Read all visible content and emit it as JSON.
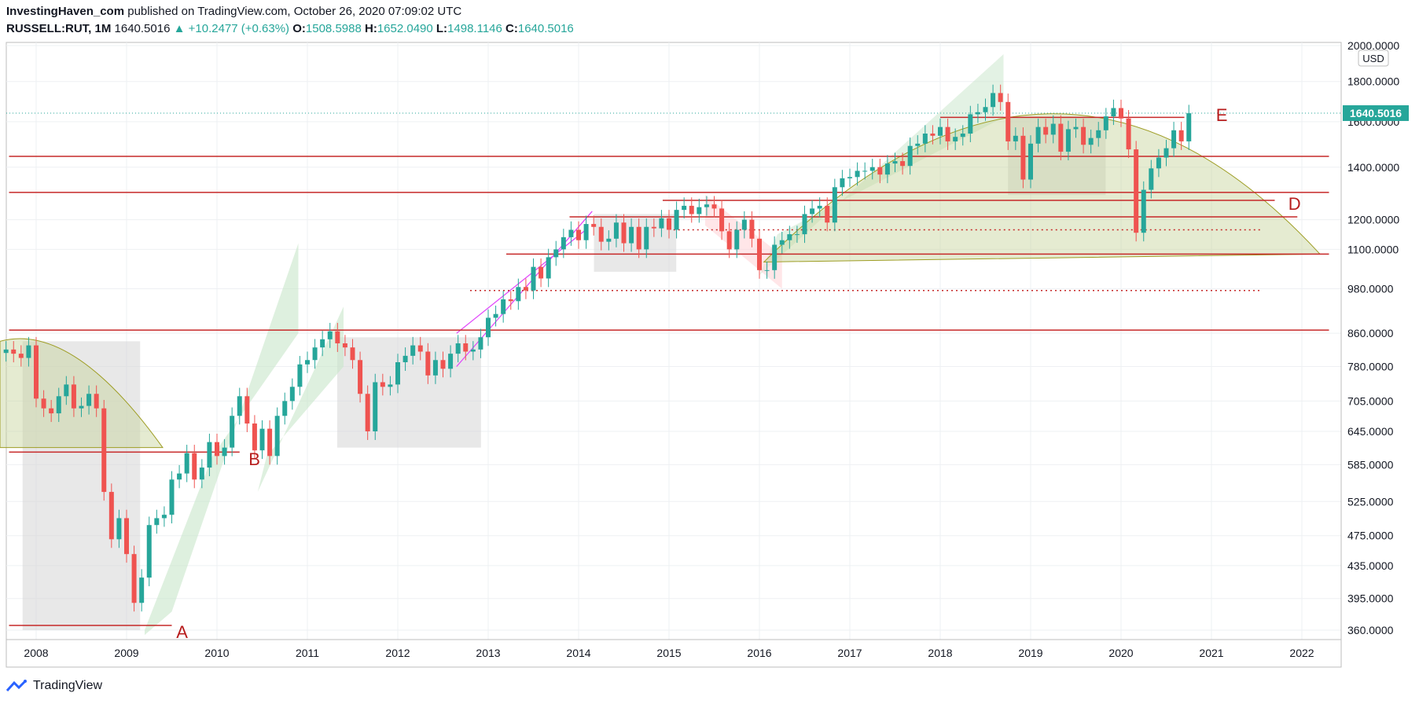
{
  "header": {
    "publisher": "InvestingHaven_com",
    "published_text": "published on TradingView.com, October 26, 2020 07:09:02 UTC",
    "symbol": "RUSSELL:RUT, 1M",
    "last": "1640.5016",
    "change_arrow": "▲",
    "change": "+10.2477 (+0.63%)",
    "open_label": "O:",
    "open": "1508.5988",
    "high_label": "H:",
    "high": "1652.0490",
    "low_label": "L:",
    "low": "1498.1146",
    "close_label": "C:",
    "close": "1640.5016"
  },
  "footer": {
    "brand": "TradingView"
  },
  "colors": {
    "up": "#26a69a",
    "down": "#ef5350",
    "hline": "#c62828",
    "label": "#b71c1c",
    "price_tag": "#26a69a",
    "green_zone": "#c8e6c9",
    "dome": "#c5d29a",
    "grey_box": "#d5d5d5"
  },
  "chart_data": {
    "type": "candlestick",
    "scale": "log",
    "currency": "USD",
    "price_tag": "1640.5016",
    "x_ticks": [
      "2008",
      "2009",
      "2010",
      "2011",
      "2012",
      "2013",
      "2014",
      "2015",
      "2016",
      "2017",
      "2018",
      "2019",
      "2020",
      "2021",
      "2022"
    ],
    "y_ticks": [
      "2000.0000",
      "1800.0000",
      "1600.0000",
      "1400.0000",
      "1200.0000",
      "1100.0000",
      "980.0000",
      "860.0000",
      "780.0000",
      "705.0000",
      "645.0000",
      "585.0000",
      "525.0000",
      "475.0000",
      "435.0000",
      "395.0000",
      "360.0000"
    ],
    "annotations": [
      "A",
      "B",
      "D",
      "E"
    ],
    "horizontal_levels": [
      1445,
      1300,
      1210,
      1085,
      868,
      605,
      365,
      1165,
      975,
      1620
    ],
    "monthly_closes": [
      {
        "year": 2007,
        "closes": [
          820,
          810,
          800,
          830
        ]
      },
      {
        "year": 2008,
        "closes": [
          710,
          690,
          680,
          715,
          740,
          690,
          695,
          720,
          690,
          540,
          470,
          500
        ]
      },
      {
        "year": 2009,
        "closes": [
          450,
          390,
          420,
          490,
          500,
          505,
          560,
          570,
          605,
          560,
          580,
          625
        ]
      },
      {
        "year": 2010,
        "closes": [
          600,
          615,
          675,
          715,
          660,
          610,
          650,
          600,
          675,
          705,
          735,
          785
        ]
      },
      {
        "year": 2011,
        "closes": [
          795,
          825,
          845,
          865,
          835,
          825,
          795,
          720,
          645,
          745,
          735,
          740
        ]
      },
      {
        "year": 2012,
        "closes": [
          790,
          805,
          830,
          815,
          760,
          795,
          775,
          810,
          835,
          815,
          820,
          850
        ]
      },
      {
        "year": 2013,
        "closes": [
          900,
          910,
          950,
          945,
          985,
          975,
          1045,
          1010,
          1075,
          1100,
          1140,
          1165
        ]
      },
      {
        "year": 2014,
        "closes": [
          1130,
          1185,
          1175,
          1125,
          1135,
          1190,
          1120,
          1175,
          1100,
          1175,
          1170,
          1205
        ]
      },
      {
        "year": 2015,
        "closes": [
          1165,
          1235,
          1250,
          1220,
          1245,
          1255,
          1240,
          1160,
          1100,
          1165,
          1200,
          1135
        ]
      },
      {
        "year": 2016,
        "closes": [
          1035,
          1035,
          1115,
          1130,
          1150,
          1150,
          1220,
          1240,
          1250,
          1190,
          1320,
          1355
        ]
      },
      {
        "year": 2017,
        "closes": [
          1360,
          1385,
          1385,
          1400,
          1370,
          1415,
          1425,
          1405,
          1490,
          1500,
          1545,
          1535
        ]
      },
      {
        "year": 2018,
        "closes": [
          1575,
          1510,
          1530,
          1545,
          1635,
          1645,
          1670,
          1740,
          1695,
          1510,
          1535,
          1350
        ]
      },
      {
        "year": 2019,
        "closes": [
          1500,
          1575,
          1540,
          1590,
          1465,
          1565,
          1575,
          1495,
          1525,
          1560,
          1625,
          1665
        ]
      },
      {
        "year": 2020,
        "closes": [
          1615,
          1475,
          1155,
          1310,
          1395,
          1440,
          1480,
          1560,
          1510,
          1640
        ]
      }
    ]
  }
}
